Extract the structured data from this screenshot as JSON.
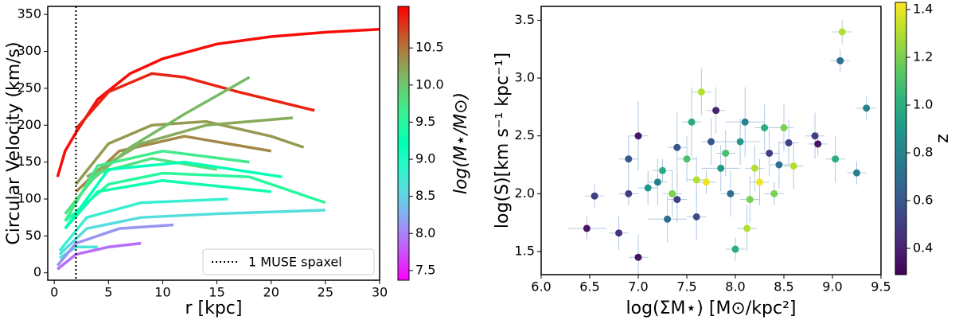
{
  "chart_data": [
    {
      "type": "line",
      "xlabel": "r [kpc]",
      "ylabel": "Circular Velocity (km/s)",
      "colorbar_label": "log(M⋆/M⊙)",
      "colormap": "rainbow",
      "clim": [
        7.37,
        11.06
      ],
      "cticks": [
        7.5,
        {
          "value": 8,
          "label": "8.0"
        },
        8.5,
        {
          "value": 9,
          "label": "9.0"
        },
        9.5,
        {
          "value": 10,
          "label": "10.0"
        },
        10.5
      ],
      "xlim": [
        -0.6,
        30
      ],
      "xticks": [
        0,
        5,
        10,
        15,
        20,
        25,
        30
      ],
      "ylim": [
        -10,
        361
      ],
      "yticks": [
        0,
        50,
        100,
        150,
        200,
        250,
        300,
        350
      ],
      "vline": {
        "x": 2,
        "label": "1 MUSE spaxel",
        "color": "#000000"
      },
      "series": [
        {
          "log_mass": 11.0,
          "x": [
            0.3,
            1,
            2,
            4,
            7,
            10,
            15,
            20,
            25,
            30
          ],
          "values": [
            130,
            165,
            190,
            235,
            270,
            290,
            310,
            320,
            326,
            330
          ]
        },
        {
          "log_mass": 10.9,
          "x": [
            2,
            5,
            9,
            12,
            17,
            24
          ],
          "values": [
            195,
            245,
            270,
            265,
            245,
            220
          ]
        },
        {
          "log_mass": 10.4,
          "x": [
            2,
            6,
            12,
            20
          ],
          "values": [
            110,
            165,
            185,
            165
          ]
        },
        {
          "log_mass": 10.3,
          "x": [
            2,
            5,
            9,
            14,
            20,
            23
          ],
          "values": [
            120,
            175,
            200,
            205,
            185,
            170
          ]
        },
        {
          "log_mass": 10.2,
          "x": [
            3,
            8,
            14,
            22
          ],
          "values": [
            130,
            175,
            200,
            210
          ]
        },
        {
          "log_mass": 10.1,
          "x": [
            3,
            7,
            12,
            18
          ],
          "values": [
            120,
            170,
            215,
            265
          ]
        },
        {
          "log_mass": 9.8,
          "x": [
            1,
            4,
            9,
            15
          ],
          "values": [
            80,
            135,
            155,
            140
          ]
        },
        {
          "log_mass": 9.7,
          "x": [
            1,
            4,
            10,
            18
          ],
          "values": [
            70,
            145,
            165,
            150
          ]
        },
        {
          "log_mass": 9.5,
          "x": [
            1,
            5,
            10,
            18,
            25
          ],
          "values": [
            70,
            120,
            135,
            130,
            95
          ]
        },
        {
          "log_mass": 9.3,
          "x": [
            1,
            4,
            10,
            20
          ],
          "values": [
            60,
            110,
            125,
            110
          ]
        },
        {
          "log_mass": 9.2,
          "x": [
            1,
            5,
            12,
            21
          ],
          "values": [
            60,
            140,
            150,
            130
          ]
        },
        {
          "log_mass": 8.8,
          "x": [
            0.5,
            3,
            8,
            16
          ],
          "values": [
            30,
            75,
            95,
            100
          ]
        },
        {
          "log_mass": 8.7,
          "x": [
            0.5,
            2,
            4
          ],
          "values": [
            20,
            35,
            35
          ]
        },
        {
          "log_mass": 8.6,
          "x": [
            0.5,
            3,
            8,
            15,
            25
          ],
          "values": [
            25,
            60,
            75,
            80,
            85
          ]
        },
        {
          "log_mass": 8.1,
          "x": [
            0.3,
            2,
            6,
            11
          ],
          "values": [
            10,
            40,
            60,
            65
          ]
        },
        {
          "log_mass": 7.9,
          "x": [
            0.3,
            2,
            5,
            8
          ],
          "values": [
            5,
            25,
            35,
            40
          ]
        }
      ]
    },
    {
      "type": "scatter",
      "xlabel": "log(ΣM⋆) [M⊙/kpc²]",
      "ylabel": "log(S)[km s⁻¹ kpc⁻¹]",
      "colorbar_label": "z",
      "colormap": "viridis",
      "errorbar_color": "#b0c8e0",
      "clim": [
        0.29,
        1.43
      ],
      "cticks": [
        0.4,
        0.6,
        0.8,
        {
          "value": 1,
          "label": "1.0"
        },
        1.2,
        1.4
      ],
      "xlim": [
        6.0,
        9.5
      ],
      "xticks": [
        {
          "value": 6,
          "label": "6.0"
        },
        6.5,
        {
          "value": 7,
          "label": "7.0"
        },
        7.5,
        {
          "value": 8,
          "label": "8.0"
        },
        8.5,
        {
          "value": 9,
          "label": "9.0"
        },
        9.5
      ],
      "ylim": [
        1.3,
        3.62
      ],
      "yticks": [
        1.5,
        {
          "value": 2,
          "label": "2.0"
        },
        2.5,
        {
          "value": 3,
          "label": "3.0"
        },
        3.5
      ],
      "x": [
        6.47,
        6.55,
        6.8,
        6.9,
        7.0,
        7.0,
        6.9,
        7.1,
        7.2,
        7.3,
        7.25,
        7.35,
        7.4,
        7.5,
        7.55,
        7.6,
        7.65,
        7.7,
        7.75,
        7.8,
        7.85,
        7.9,
        7.95,
        8.0,
        8.05,
        8.1,
        8.15,
        8.2,
        8.25,
        8.3,
        8.35,
        8.4,
        8.45,
        8.5,
        8.55,
        8.6,
        8.82,
        8.85,
        9.03,
        9.08,
        9.1,
        9.25,
        9.35,
        7.6,
        8.12,
        7.4
      ],
      "values": [
        1.7,
        1.98,
        1.66,
        2.3,
        2.5,
        1.45,
        2.0,
        2.05,
        2.1,
        1.78,
        2.2,
        2.0,
        2.4,
        2.3,
        2.62,
        2.12,
        2.88,
        2.1,
        2.45,
        2.72,
        2.22,
        2.35,
        2.0,
        1.52,
        2.45,
        2.62,
        1.95,
        2.22,
        2.1,
        2.57,
        2.35,
        2.0,
        2.25,
        2.57,
        2.44,
        2.24,
        2.5,
        2.43,
        2.3,
        3.15,
        3.4,
        2.18,
        2.74,
        1.8,
        1.7,
        1.95
      ],
      "z": [
        0.35,
        0.5,
        0.45,
        0.6,
        0.35,
        0.35,
        0.5,
        0.9,
        0.8,
        0.7,
        1.0,
        1.2,
        0.6,
        1.1,
        1.0,
        1.3,
        1.3,
        1.4,
        0.6,
        0.4,
        0.9,
        1.1,
        0.7,
        1.0,
        0.9,
        0.8,
        1.2,
        1.3,
        1.4,
        1.0,
        0.5,
        1.2,
        0.7,
        1.2,
        0.5,
        1.3,
        0.5,
        0.35,
        1.0,
        0.7,
        1.3,
        0.8,
        0.8,
        0.55,
        1.3,
        0.5
      ],
      "xerr": [
        0.2,
        0.1,
        0.1,
        0.1,
        0.1,
        0.1,
        0.1,
        0.1,
        0.1,
        0.2,
        0.1,
        0.1,
        0.1,
        0.1,
        0.1,
        0.1,
        0.1,
        0.1,
        0.1,
        0.1,
        0.2,
        0.1,
        0.1,
        0.1,
        0.2,
        0.2,
        0.1,
        0.1,
        0.1,
        0.1,
        0.1,
        0.1,
        0.1,
        0.1,
        0.1,
        0.1,
        0.1,
        0.1,
        0.1,
        0.1,
        0.1,
        0.1,
        0.1,
        0.1,
        0.1,
        0.1
      ],
      "yerr": [
        0.1,
        0.1,
        0.15,
        0.2,
        0.3,
        0.2,
        0.1,
        0.15,
        0.2,
        0.2,
        0.1,
        0.2,
        0.3,
        0.2,
        0.3,
        0.2,
        0.2,
        0.1,
        0.2,
        0.2,
        0.2,
        0.2,
        0.2,
        0.1,
        0.2,
        0.3,
        0.2,
        0.2,
        0.2,
        0.2,
        0.2,
        0.1,
        0.2,
        0.2,
        0.2,
        0.2,
        0.2,
        0.1,
        0.2,
        0.1,
        0.1,
        0.1,
        0.1,
        0.2,
        0.2,
        0.2
      ]
    }
  ]
}
